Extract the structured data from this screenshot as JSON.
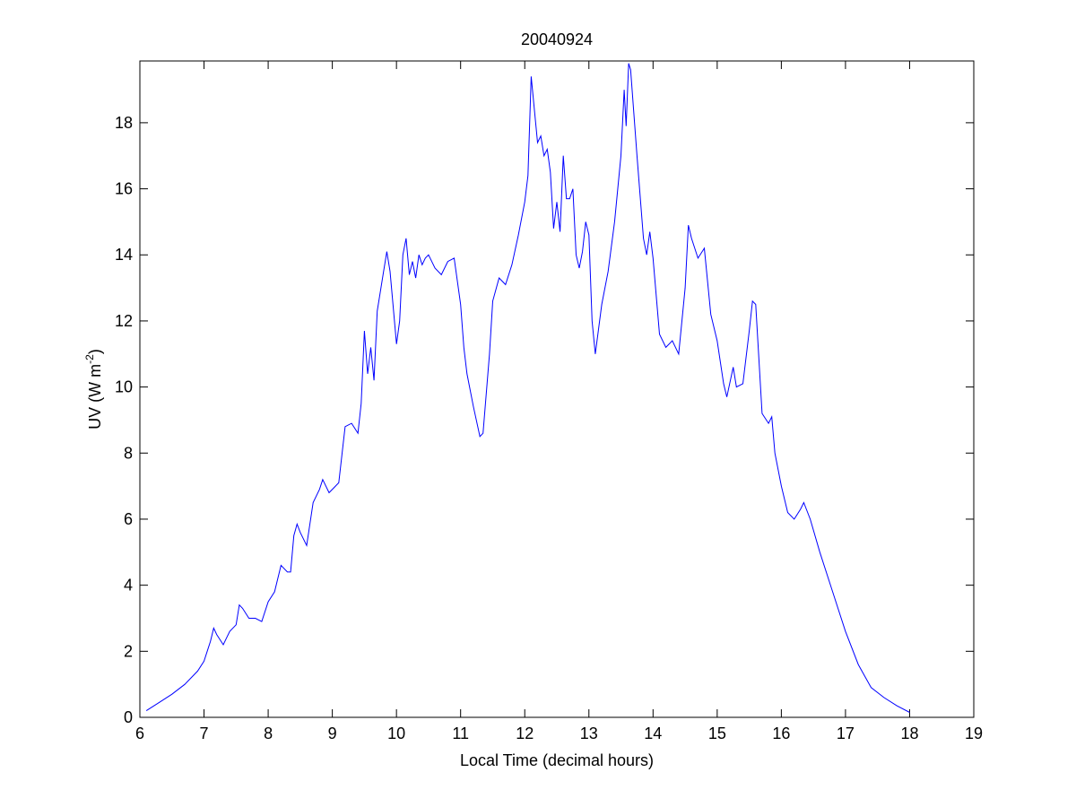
{
  "chart_data": {
    "type": "line",
    "title": "20040924",
    "xlabel": "Local Time (decimal hours)",
    "ylabel_main": "UV (W m",
    "ylabel_sup": "-2",
    "ylabel_close": ")",
    "xlim": [
      6,
      19
    ],
    "ylim": [
      0,
      19.87
    ],
    "xticks": [
      6,
      7,
      8,
      9,
      10,
      11,
      12,
      13,
      14,
      15,
      16,
      17,
      18,
      19
    ],
    "yticks": [
      0,
      2,
      4,
      6,
      8,
      10,
      12,
      14,
      16,
      18
    ],
    "grid": false,
    "line_color": "#0000ff",
    "series": [
      {
        "x": [
          6.1,
          6.3,
          6.5,
          6.7,
          6.9,
          7.0,
          7.05,
          7.1,
          7.15,
          7.2,
          7.3,
          7.4,
          7.5,
          7.55,
          7.6,
          7.7,
          7.8,
          7.9,
          8.0,
          8.1,
          8.2,
          8.3,
          8.35,
          8.4,
          8.45,
          8.5,
          8.6,
          8.7,
          8.8,
          8.85,
          8.95,
          9.1,
          9.2,
          9.3,
          9.4,
          9.45,
          9.5,
          9.55,
          9.6,
          9.65,
          9.7,
          9.8,
          9.85,
          9.9,
          10.0,
          10.05,
          10.1,
          10.15,
          10.2,
          10.25,
          10.3,
          10.35,
          10.4,
          10.45,
          10.5,
          10.6,
          10.7,
          10.8,
          10.9,
          11.0,
          11.05,
          11.1,
          11.2,
          11.3,
          11.35,
          11.45,
          11.5,
          11.6,
          11.7,
          11.8,
          11.9,
          12.0,
          12.05,
          12.1,
          12.2,
          12.25,
          12.3,
          12.35,
          12.4,
          12.45,
          12.5,
          12.55,
          12.6,
          12.65,
          12.7,
          12.75,
          12.8,
          12.85,
          12.9,
          12.95,
          13.0,
          13.05,
          13.1,
          13.2,
          13.3,
          13.4,
          13.5,
          13.55,
          13.58,
          13.62,
          13.65,
          13.75,
          13.85,
          13.9,
          13.95,
          14.0,
          14.1,
          14.2,
          14.3,
          14.4,
          14.5,
          14.55,
          14.6,
          14.7,
          14.8,
          14.9,
          15.0,
          15.1,
          15.15,
          15.25,
          15.3,
          15.4,
          15.5,
          15.55,
          15.6,
          15.7,
          15.8,
          15.85,
          15.9,
          16.0,
          16.1,
          16.2,
          16.3,
          16.35,
          16.45,
          16.6,
          16.8,
          17.0,
          17.2,
          17.4,
          17.6,
          17.8,
          18.0
        ],
        "y": [
          0.2,
          0.45,
          0.7,
          1.0,
          1.4,
          1.7,
          2.0,
          2.3,
          2.7,
          2.5,
          2.2,
          2.6,
          2.8,
          3.4,
          3.3,
          3.0,
          3.0,
          2.9,
          3.5,
          3.8,
          4.6,
          4.4,
          4.4,
          5.5,
          5.85,
          5.6,
          5.2,
          6.5,
          6.9,
          7.2,
          6.8,
          7.1,
          8.8,
          8.9,
          8.6,
          9.5,
          11.7,
          10.4,
          11.2,
          10.2,
          12.3,
          13.5,
          14.1,
          13.5,
          11.3,
          12.0,
          14.0,
          14.5,
          13.4,
          13.8,
          13.3,
          14.0,
          13.7,
          13.9,
          14.0,
          13.6,
          13.4,
          13.8,
          13.9,
          12.5,
          11.2,
          10.4,
          9.4,
          8.5,
          8.6,
          11.0,
          12.6,
          13.3,
          13.1,
          13.7,
          14.6,
          15.6,
          16.4,
          19.4,
          17.4,
          17.6,
          17.0,
          17.2,
          16.5,
          14.8,
          15.6,
          14.7,
          17.0,
          15.7,
          15.7,
          16.0,
          14.0,
          13.6,
          14.1,
          15.0,
          14.6,
          12.0,
          11.0,
          12.5,
          13.5,
          15.0,
          17.0,
          19.0,
          17.9,
          19.8,
          19.6,
          17.0,
          14.5,
          14.0,
          14.7,
          13.9,
          11.6,
          11.2,
          11.4,
          11.0,
          13.0,
          14.9,
          14.5,
          13.9,
          14.2,
          12.2,
          11.4,
          10.1,
          9.7,
          10.6,
          10.0,
          10.1,
          11.7,
          12.6,
          12.5,
          9.2,
          8.9,
          9.1,
          8.0,
          7.0,
          6.2,
          6.0,
          6.3,
          6.5,
          6.0,
          5.0,
          3.8,
          2.6,
          1.6,
          0.9,
          0.6,
          0.35,
          0.15
        ]
      }
    ]
  }
}
